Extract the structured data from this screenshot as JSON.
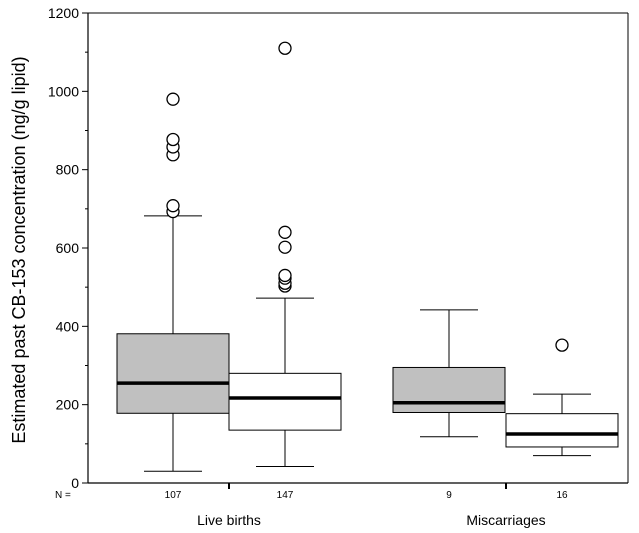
{
  "chart_data": {
    "type": "boxplot",
    "ylabel": "Estimated past CB-153 concentration (ng/g lipid)",
    "ylim": [
      0,
      1200
    ],
    "yticks": [
      0,
      200,
      400,
      600,
      800,
      1000,
      1200
    ],
    "n_prefix": "N =",
    "groups": [
      "Live births",
      "Miscarriages"
    ],
    "colors": {
      "filled_box": "#c0c0c0",
      "open_box": "#ffffff",
      "stroke": "#000000"
    },
    "boxes": [
      {
        "group": "Live births",
        "n": "107",
        "fill": "filled_box",
        "whisker_low": 30,
        "q1": 178,
        "median": 255,
        "q3": 381,
        "whisker_high": 682,
        "outliers": [
          693,
          708,
          838,
          858,
          877,
          980
        ]
      },
      {
        "group": "Live births",
        "n": "147",
        "fill": "open_box",
        "whisker_low": 42,
        "q1": 135,
        "median": 217,
        "q3": 280,
        "whisker_high": 472,
        "outliers": [
          503,
          510,
          523,
          530,
          602,
          640,
          1110
        ]
      },
      {
        "group": "Miscarriages",
        "n": "9",
        "fill": "filled_box",
        "whisker_low": 118,
        "q1": 180,
        "median": 205,
        "q3": 295,
        "whisker_high": 442,
        "outliers": []
      },
      {
        "group": "Miscarriages",
        "n": "16",
        "fill": "open_box",
        "whisker_low": 70,
        "q1": 92,
        "median": 125,
        "q3": 177,
        "whisker_high": 227,
        "outliers": [
          352
        ]
      }
    ]
  }
}
